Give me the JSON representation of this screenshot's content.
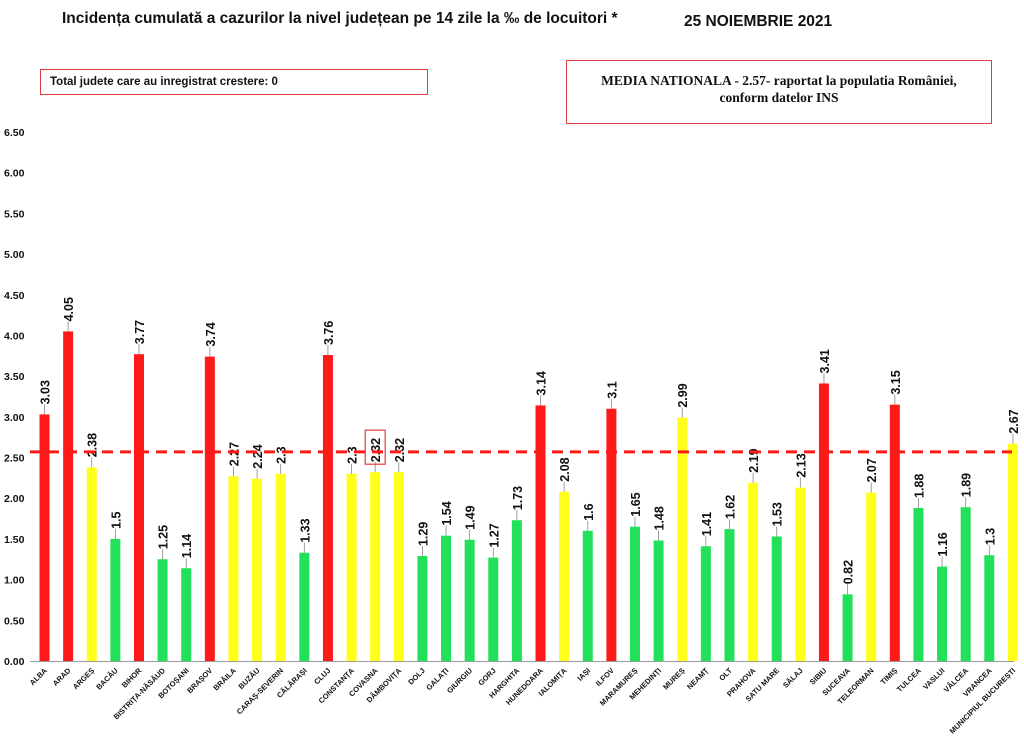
{
  "header": {
    "title": "Incidența cumulată a cazurilor la nivel județean pe 14 zile la ‰ de locuitori *",
    "date": "25 NOIEMBRIE 2021"
  },
  "notes": {
    "left_box": "Total judete care au inregistrat crestere: 0",
    "right_box_line1": "MEDIA NATIONALA - 2.57-  raportat la populatia României,",
    "right_box_line2": "conform datelor INS"
  },
  "colors": {
    "red": "#ff1a1a",
    "yellow": "#ffff1a",
    "green": "#22e05a",
    "average_line": "#ff1a1a",
    "box_border": "#e23b3b"
  },
  "chart_data": {
    "type": "bar",
    "categories": [
      "ALBA",
      "ARAD",
      "ARGEȘ",
      "BACĂU",
      "BIHOR",
      "BISTRIȚA-NĂSĂUD",
      "BOTOȘANI",
      "BRAȘOV",
      "BRĂILA",
      "BUZĂU",
      "CARAȘ-SEVERIN",
      "CĂLĂRAȘI",
      "CLUJ",
      "CONSTANȚA",
      "COVASNA",
      "DÂMBOVIȚA",
      "DOLJ",
      "GALAȚI",
      "GIURGIU",
      "GORJ",
      "HARGHITA",
      "HUNEDOARA",
      "IALOMIȚA",
      "IAȘI",
      "ILFOV",
      "MARAMUREȘ",
      "MEHEDINȚI",
      "MUREȘ",
      "NEAMȚ",
      "OLT",
      "PRAHOVA",
      "SATU MARE",
      "SĂLAJ",
      "SIBIU",
      "SUCEAVA",
      "TELEORMAN",
      "TIMIȘ",
      "TULCEA",
      "VASLUI",
      "VÂLCEA",
      "VRANCEA",
      "MUNICIPIUL BUCUREȘTI"
    ],
    "values": [
      3.03,
      4.05,
      2.38,
      1.5,
      3.77,
      1.25,
      1.14,
      3.74,
      2.27,
      2.24,
      2.3,
      1.33,
      3.76,
      2.3,
      2.32,
      2.32,
      1.29,
      1.54,
      1.49,
      1.27,
      1.73,
      3.14,
      2.08,
      1.6,
      3.1,
      1.65,
      1.48,
      2.99,
      1.41,
      1.62,
      2.19,
      1.53,
      2.13,
      3.41,
      0.82,
      2.07,
      3.15,
      1.88,
      1.16,
      1.89,
      1.3,
      2.67
    ],
    "value_labels": [
      "3.03",
      "4.05",
      "2.38",
      "1.5",
      "3.77",
      "1.25",
      "1.14",
      "3.74",
      "2.27",
      "2.24",
      "2.3",
      "1.33",
      "3.76",
      "2.3",
      "2.32",
      "2.32",
      "1.29",
      "1.54",
      "1.49",
      "1.27",
      "1.73",
      "3.14",
      "2.08",
      "1.6",
      "3.1",
      "1.65",
      "1.48",
      "2.99",
      "1.41",
      "1.62",
      "2.19",
      "1.53",
      "2.13",
      "3.41",
      "0.82",
      "2.07",
      "3.15",
      "1.88",
      "1.16",
      "1.89",
      "1.3",
      "2.67"
    ],
    "bar_colors": [
      "red",
      "red",
      "yellow",
      "green",
      "red",
      "green",
      "green",
      "red",
      "yellow",
      "yellow",
      "yellow",
      "green",
      "red",
      "yellow",
      "yellow",
      "yellow",
      "green",
      "green",
      "green",
      "green",
      "green",
      "red",
      "yellow",
      "green",
      "red",
      "green",
      "green",
      "yellow",
      "green",
      "green",
      "yellow",
      "green",
      "yellow",
      "red",
      "green",
      "yellow",
      "red",
      "green",
      "green",
      "green",
      "green",
      "yellow"
    ],
    "highlighted_label_category": "COVASNA",
    "average_line_value": 2.57,
    "yticks": [
      "0.00",
      "0.50",
      "1.00",
      "1.50",
      "2.00",
      "2.50",
      "3.00",
      "3.50",
      "4.00",
      "4.50",
      "5.00",
      "5.50",
      "6.00",
      "6.50"
    ],
    "ylim": [
      0,
      6.5
    ],
    "grid": false,
    "legend": "none",
    "xlabel": "",
    "ylabel": ""
  }
}
